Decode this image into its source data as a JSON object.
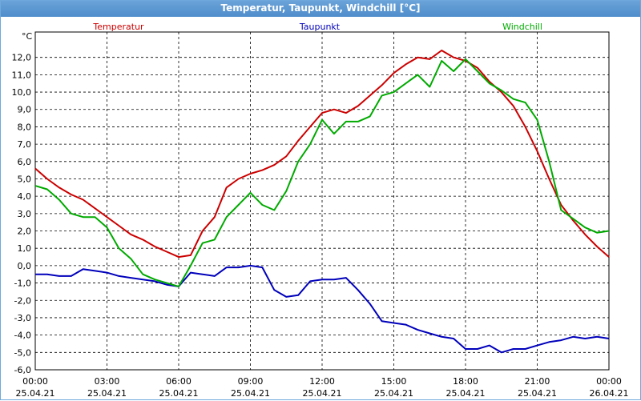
{
  "window": {
    "title": "Temperatur, Taupunkt, Windchill [°C]"
  },
  "chart_data": {
    "type": "line",
    "title": "Temperatur, Taupunkt, Windchill [°C]",
    "ylabel": "°C",
    "ylim": [
      -6,
      13
    ],
    "xlim": [
      0,
      24
    ],
    "grid": true,
    "yticks": [
      "12,0",
      "11,0",
      "10,0",
      "9,0",
      "8,0",
      "7,0",
      "6,0",
      "5,0",
      "4,0",
      "3,0",
      "2,0",
      "1,0",
      "0,0",
      "-1,0",
      "-2,0",
      "-3,0",
      "-4,0",
      "-5,0",
      "-6,0"
    ],
    "xticks": [
      {
        "time": "00:00",
        "date": "25.04.21"
      },
      {
        "time": "03:00",
        "date": "25.04.21"
      },
      {
        "time": "06:00",
        "date": "25.04.21"
      },
      {
        "time": "09:00",
        "date": "25.04.21"
      },
      {
        "time": "12:00",
        "date": "25.04.21"
      },
      {
        "time": "15:00",
        "date": "25.04.21"
      },
      {
        "time": "18:00",
        "date": "25.04.21"
      },
      {
        "time": "21:00",
        "date": "25.04.21"
      },
      {
        "time": "00:00",
        "date": "26.04.21"
      }
    ],
    "legend": [
      {
        "name": "Temperatur",
        "color": "#cc0000"
      },
      {
        "name": "Taupunkt",
        "color": "#0000bb"
      },
      {
        "name": "Windchill",
        "color": "#00aa00"
      }
    ],
    "series": [
      {
        "name": "Temperatur",
        "color": "#cc0000",
        "x": [
          0,
          0.5,
          1,
          1.5,
          2,
          2.5,
          3,
          3.5,
          4,
          4.5,
          5,
          5.5,
          6,
          6.5,
          7,
          7.5,
          8,
          8.5,
          9,
          9.5,
          10,
          10.5,
          11,
          11.5,
          12,
          12.5,
          13,
          13.5,
          14,
          14.5,
          15,
          15.5,
          16,
          16.5,
          17,
          17.5,
          18,
          18.5,
          19,
          19.5,
          20,
          20.5,
          21,
          21.5,
          22,
          22.5,
          23,
          23.5,
          24
        ],
        "values": [
          5.6,
          5.0,
          4.5,
          4.1,
          3.8,
          3.3,
          2.8,
          2.3,
          1.8,
          1.5,
          1.1,
          0.8,
          0.5,
          0.6,
          2.0,
          2.8,
          4.5,
          5.0,
          5.3,
          5.5,
          5.8,
          6.3,
          7.2,
          8.0,
          8.8,
          9.0,
          8.8,
          9.2,
          9.8,
          10.4,
          11.1,
          11.6,
          12.0,
          11.9,
          12.4,
          12.0,
          11.8,
          11.4,
          10.6,
          10.0,
          9.2,
          8.0,
          6.6,
          5.0,
          3.5,
          2.6,
          1.8,
          1.1,
          0.5
        ]
      },
      {
        "name": "Taupunkt",
        "color": "#0000bb",
        "x": [
          0,
          0.5,
          1,
          1.5,
          2,
          2.5,
          3,
          3.5,
          4,
          4.5,
          5,
          5.5,
          6,
          6.5,
          7,
          7.5,
          8,
          8.5,
          9,
          9.5,
          10,
          10.5,
          11,
          11.5,
          12,
          12.5,
          13,
          13.5,
          14,
          14.5,
          15,
          15.5,
          16,
          16.5,
          17,
          17.5,
          18,
          18.5,
          19,
          19.5,
          20,
          20.5,
          21,
          21.5,
          22,
          22.5,
          23,
          23.5,
          24
        ],
        "values": [
          -0.5,
          -0.5,
          -0.6,
          -0.6,
          -0.2,
          -0.3,
          -0.4,
          -0.6,
          -0.7,
          -0.8,
          -0.9,
          -1.1,
          -1.2,
          -0.4,
          -0.5,
          -0.6,
          -0.1,
          -0.1,
          0.0,
          -0.1,
          -1.4,
          -1.8,
          -1.7,
          -0.9,
          -0.8,
          -0.8,
          -0.7,
          -1.4,
          -2.2,
          -3.2,
          -3.3,
          -3.4,
          -3.7,
          -3.9,
          -4.1,
          -4.2,
          -4.8,
          -4.8,
          -4.6,
          -5.0,
          -4.8,
          -4.8,
          -4.6,
          -4.4,
          -4.3,
          -4.1,
          -4.2,
          -4.1,
          -4.2
        ]
      },
      {
        "name": "Windchill",
        "color": "#00aa00",
        "x": [
          0,
          0.5,
          1,
          1.5,
          2,
          2.5,
          3,
          3.5,
          4,
          4.5,
          5,
          5.5,
          6,
          6.5,
          7,
          7.5,
          8,
          8.5,
          9,
          9.5,
          10,
          10.5,
          11,
          11.5,
          12,
          12.5,
          13,
          13.5,
          14,
          14.5,
          15,
          15.5,
          16,
          16.5,
          17,
          17.5,
          18,
          18.5,
          19,
          19.5,
          20,
          20.5,
          21,
          21.5,
          22,
          22.5,
          23,
          23.5,
          24
        ],
        "values": [
          4.6,
          4.4,
          3.8,
          3.0,
          2.8,
          2.8,
          2.2,
          1.0,
          0.4,
          -0.5,
          -0.8,
          -1.0,
          -1.2,
          0.0,
          1.3,
          1.5,
          2.8,
          3.5,
          4.2,
          3.5,
          3.2,
          4.3,
          6.0,
          7.0,
          8.4,
          7.6,
          8.3,
          8.3,
          8.6,
          9.8,
          10.0,
          10.5,
          11.0,
          10.3,
          11.8,
          11.2,
          11.9,
          11.2,
          10.5,
          10.1,
          9.6,
          9.4,
          8.4,
          6.0,
          3.2,
          2.7,
          2.2,
          1.9,
          2.0
        ]
      }
    ]
  }
}
